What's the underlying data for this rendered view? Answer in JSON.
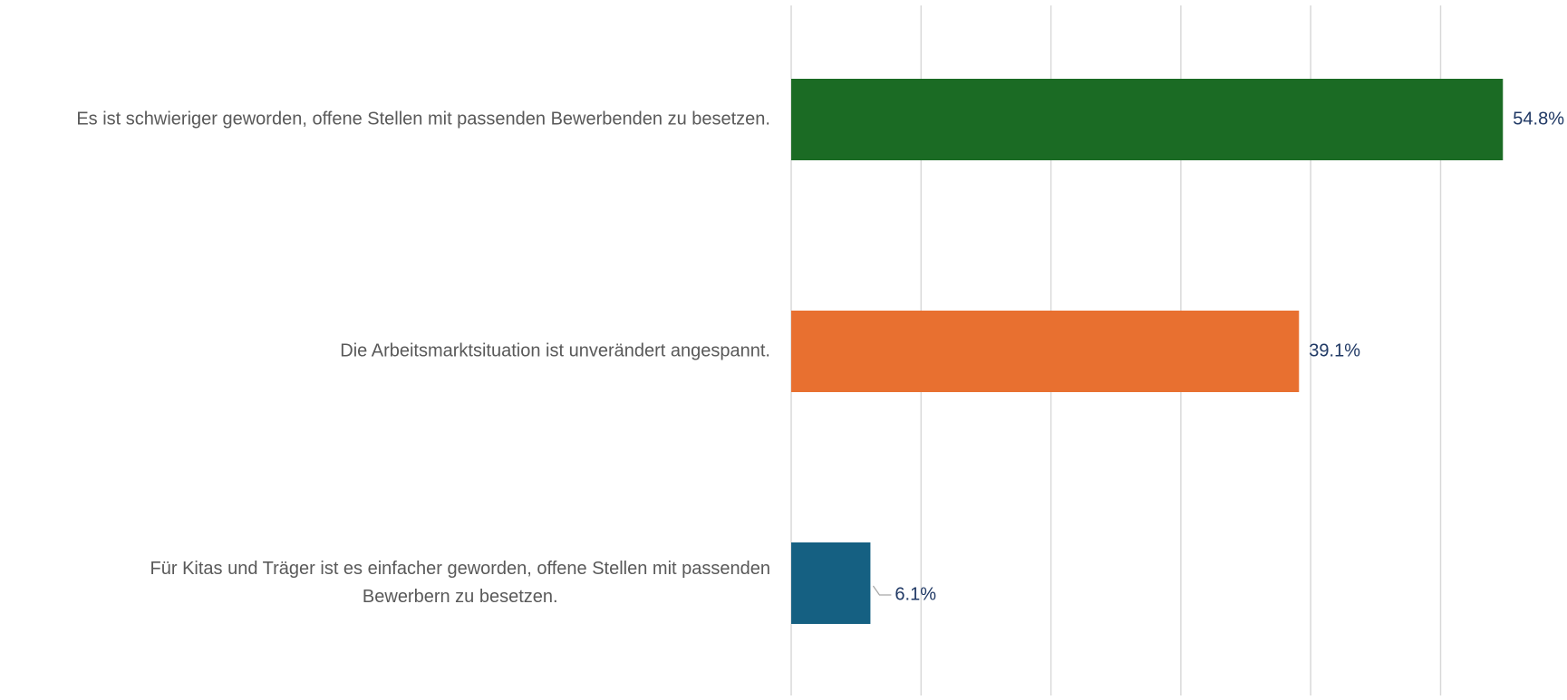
{
  "chart_data": {
    "type": "bar",
    "orientation": "horizontal",
    "categories": [
      "Es ist schwieriger geworden, offene Stellen mit passenden Bewerbenden zu besetzen.",
      "Die Arbeitsmarktsituation ist unverändert angespannt.",
      "Für Kitas und Träger ist es einfacher geworden, offene Stellen mit passenden Bewerbern zu besetzen."
    ],
    "category_lines": [
      [
        "Es ist schwieriger geworden, offene Stellen mit passenden Bewerbenden zu besetzen."
      ],
      [
        "Die Arbeitsmarktsituation ist unverändert angespannt."
      ],
      [
        "Für Kitas und Träger ist es einfacher geworden, offene Stellen mit passenden",
        "Bewerbern zu besetzen."
      ]
    ],
    "values": [
      54.8,
      39.1,
      6.1
    ],
    "value_labels": [
      "54.8%",
      "39.1%",
      "6.1%"
    ],
    "colors": [
      "#1b6b24",
      "#e87030",
      "#156082"
    ],
    "xlim": [
      0,
      60
    ],
    "grid": true,
    "title": "",
    "xlabel": "",
    "ylabel": ""
  }
}
